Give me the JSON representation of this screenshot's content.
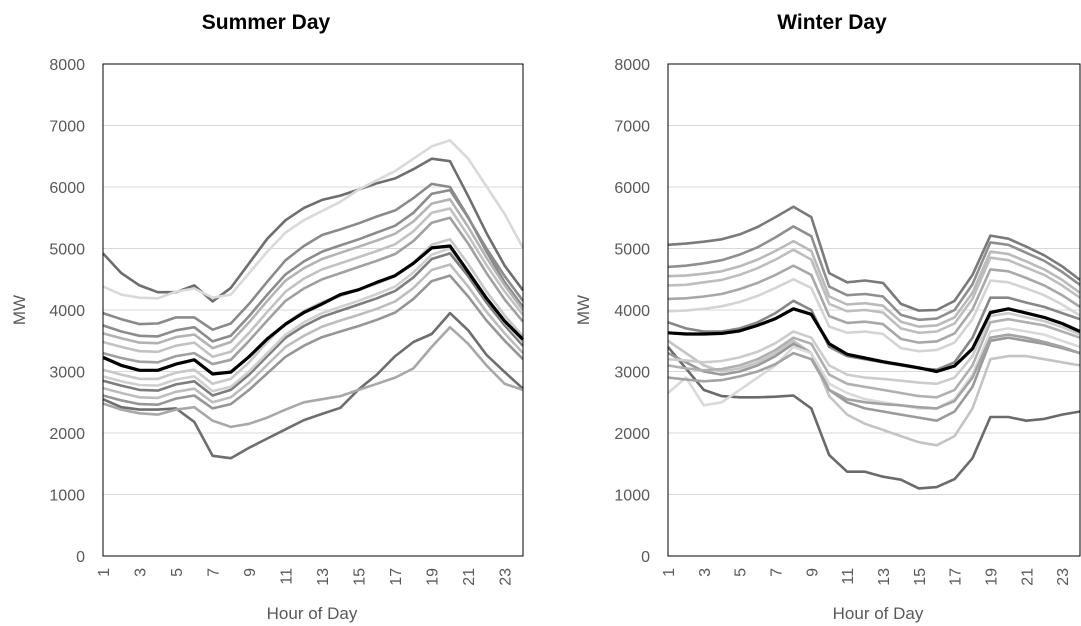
{
  "chart_data": [
    {
      "type": "line",
      "title": "Summer Day",
      "xlabel": "Hour of Day",
      "ylabel": "MW",
      "ylim": [
        0,
        8000
      ],
      "yticks": [
        0,
        1000,
        2000,
        3000,
        4000,
        5000,
        6000,
        7000,
        8000
      ],
      "xticks": [
        "1",
        "3",
        "5",
        "7",
        "9",
        "11",
        "13",
        "15",
        "17",
        "19",
        "21",
        "23"
      ],
      "x": [
        1,
        2,
        3,
        4,
        5,
        6,
        7,
        8,
        9,
        10,
        11,
        12,
        13,
        14,
        15,
        16,
        17,
        18,
        19,
        20,
        21,
        22,
        23,
        24
      ],
      "grid": true,
      "series": [
        {
          "color": "#000000",
          "values": [
            3230,
            3100,
            3020,
            3020,
            3120,
            3190,
            2960,
            2990,
            3240,
            3530,
            3770,
            3960,
            4100,
            4250,
            4330,
            4450,
            4560,
            4760,
            5010,
            5040,
            4620,
            4190,
            3820,
            3520
          ]
        },
        {
          "color": "#6e6e6e",
          "values": [
            4920,
            4600,
            4400,
            4290,
            4290,
            4400,
            4140,
            4360,
            4760,
            5160,
            5460,
            5660,
            5790,
            5860,
            5960,
            6060,
            6140,
            6290,
            6460,
            6420,
            5850,
            5250,
            4720,
            4320
          ]
        },
        {
          "color": "#d9d9d9",
          "values": [
            4380,
            4250,
            4200,
            4190,
            4300,
            4350,
            4200,
            4250,
            4600,
            4950,
            5260,
            5460,
            5610,
            5760,
            5960,
            6110,
            6260,
            6460,
            6660,
            6760,
            6460,
            6010,
            5560,
            5010
          ]
        },
        {
          "color": "#8a8a8a",
          "values": [
            3950,
            3850,
            3770,
            3780,
            3880,
            3880,
            3680,
            3780,
            4100,
            4460,
            4810,
            5040,
            5220,
            5310,
            5410,
            5520,
            5620,
            5820,
            6050,
            6000,
            5510,
            4950,
            4450,
            4050
          ]
        },
        {
          "color": "#b3b3b3",
          "values": [
            3620,
            3540,
            3470,
            3460,
            3560,
            3600,
            3380,
            3480,
            3800,
            4150,
            4480,
            4680,
            4830,
            4930,
            5030,
            5130,
            5240,
            5440,
            5730,
            5800,
            5350,
            4850,
            4400,
            4000
          ]
        },
        {
          "color": "#a0a0a0",
          "values": [
            3300,
            3220,
            3160,
            3150,
            3250,
            3300,
            3120,
            3190,
            3500,
            3830,
            4150,
            4350,
            4500,
            4600,
            4700,
            4800,
            4910,
            5120,
            5420,
            5500,
            5080,
            4600,
            4170,
            3810
          ]
        },
        {
          "color": "#c8c8c8",
          "values": [
            3030,
            2950,
            2880,
            2880,
            2980,
            3030,
            2800,
            2880,
            3150,
            3480,
            3780,
            3980,
            4130,
            4230,
            4330,
            4430,
            4550,
            4770,
            5060,
            5150,
            4750,
            4300,
            3910,
            3570
          ]
        },
        {
          "color": "#7d7d7d",
          "values": [
            2850,
            2770,
            2700,
            2690,
            2790,
            2840,
            2610,
            2700,
            2950,
            3250,
            3550,
            3740,
            3890,
            3990,
            4090,
            4190,
            4310,
            4530,
            4830,
            4920,
            4550,
            4120,
            3750,
            3420
          ]
        },
        {
          "color": "#bdbdbd",
          "values": [
            2730,
            2650,
            2580,
            2570,
            2670,
            2720,
            2500,
            2580,
            2820,
            3110,
            3400,
            3580,
            3730,
            3830,
            3920,
            4020,
            4140,
            4360,
            4650,
            4740,
            4380,
            3970,
            3620,
            3300
          ]
        },
        {
          "color": "#969696",
          "values": [
            2610,
            2530,
            2470,
            2460,
            2560,
            2610,
            2400,
            2470,
            2700,
            2970,
            3240,
            3420,
            3560,
            3650,
            3740,
            3840,
            3960,
            4180,
            4470,
            4560,
            4220,
            3830,
            3500,
            3200
          ]
        },
        {
          "color": "#d0d0d0",
          "values": [
            2920,
            2840,
            2780,
            2770,
            2870,
            2920,
            2680,
            2750,
            3000,
            3300,
            3600,
            3800,
            3950,
            4050,
            4150,
            4260,
            4380,
            4610,
            4900,
            5000,
            4620,
            4180,
            3800,
            3470
          ]
        },
        {
          "color": "#6e6e6e",
          "values": [
            2550,
            2420,
            2380,
            2380,
            2400,
            2180,
            1630,
            1590,
            1760,
            1910,
            2060,
            2210,
            2310,
            2410,
            2710,
            2950,
            3250,
            3480,
            3610,
            3950,
            3670,
            3270,
            2990,
            2720
          ]
        },
        {
          "color": "#a8a8a8",
          "values": [
            2480,
            2380,
            2320,
            2300,
            2380,
            2420,
            2200,
            2100,
            2150,
            2250,
            2380,
            2500,
            2550,
            2600,
            2700,
            2800,
            2900,
            3050,
            3400,
            3720,
            3450,
            3100,
            2800,
            2700
          ]
        },
        {
          "color": "#8c8c8c",
          "values": [
            3750,
            3650,
            3580,
            3570,
            3670,
            3720,
            3490,
            3580,
            3900,
            4250,
            4580,
            4790,
            4950,
            5050,
            5150,
            5260,
            5370,
            5580,
            5890,
            5950,
            5500,
            5000,
            4550,
            4150
          ]
        },
        {
          "color": "#c2c2c2",
          "values": [
            3480,
            3400,
            3330,
            3320,
            3420,
            3470,
            3240,
            3320,
            3630,
            3970,
            4300,
            4510,
            4660,
            4760,
            4860,
            4960,
            5070,
            5280,
            5580,
            5650,
            5210,
            4730,
            4300,
            3920
          ]
        }
      ]
    },
    {
      "type": "line",
      "title": "Winter Day",
      "xlabel": "Hour of Day",
      "ylabel": "MW",
      "ylim": [
        0,
        8000
      ],
      "yticks": [
        0,
        1000,
        2000,
        3000,
        4000,
        5000,
        6000,
        7000,
        8000
      ],
      "xticks": [
        "1",
        "3",
        "5",
        "7",
        "9",
        "11",
        "13",
        "15",
        "17",
        "19",
        "21",
        "23"
      ],
      "x": [
        1,
        2,
        3,
        4,
        5,
        6,
        7,
        8,
        9,
        10,
        11,
        12,
        13,
        14,
        15,
        16,
        17,
        18,
        19,
        20,
        21,
        22,
        23,
        24
      ],
      "grid": true,
      "series": [
        {
          "color": "#000000",
          "values": [
            3630,
            3610,
            3610,
            3620,
            3660,
            3750,
            3860,
            4020,
            3930,
            3450,
            3280,
            3220,
            3160,
            3110,
            3060,
            3000,
            3090,
            3370,
            3960,
            4020,
            3950,
            3880,
            3780,
            3650
          ]
        },
        {
          "color": "#7a7a7a",
          "values": [
            5060,
            5080,
            5110,
            5150,
            5230,
            5350,
            5510,
            5680,
            5510,
            4600,
            4450,
            4480,
            4440,
            4100,
            3990,
            4000,
            4150,
            4570,
            5210,
            5160,
            5030,
            4890,
            4710,
            4490
          ]
        },
        {
          "color": "#8f8f8f",
          "values": [
            4700,
            4720,
            4760,
            4810,
            4900,
            5020,
            5180,
            5360,
            5200,
            4380,
            4240,
            4260,
            4220,
            3920,
            3840,
            3860,
            4000,
            4420,
            5100,
            5060,
            4930,
            4800,
            4620,
            4410
          ]
        },
        {
          "color": "#bebebe",
          "values": [
            4400,
            4410,
            4450,
            4490,
            4570,
            4680,
            4820,
            4980,
            4820,
            4100,
            3980,
            4000,
            3960,
            3700,
            3630,
            3650,
            3780,
            4180,
            4850,
            4810,
            4690,
            4570,
            4400,
            4200
          ]
        },
        {
          "color": "#a8a8a8",
          "values": [
            4180,
            4190,
            4220,
            4260,
            4340,
            4440,
            4570,
            4720,
            4570,
            3900,
            3790,
            3810,
            3770,
            3530,
            3470,
            3490,
            3620,
            4010,
            4660,
            4630,
            4520,
            4400,
            4240,
            4050
          ]
        },
        {
          "color": "#d4d4d4",
          "values": [
            3980,
            3990,
            4020,
            4060,
            4130,
            4230,
            4360,
            4500,
            4360,
            3730,
            3630,
            3650,
            3610,
            3380,
            3330,
            3350,
            3470,
            3850,
            4480,
            4450,
            4350,
            4240,
            4090,
            3910
          ]
        },
        {
          "color": "#6a6a6a",
          "values": [
            3400,
            3050,
            2700,
            2600,
            2580,
            2580,
            2590,
            2610,
            2400,
            1640,
            1370,
            1370,
            1290,
            1240,
            1100,
            1120,
            1250,
            1590,
            2260,
            2260,
            2200,
            2230,
            2300,
            2350
          ]
        },
        {
          "color": "#c4c4c4",
          "values": [
            3500,
            3300,
            3100,
            3000,
            3050,
            3150,
            3300,
            3500,
            3300,
            2600,
            2300,
            2150,
            2050,
            1950,
            1850,
            1800,
            1950,
            2400,
            3200,
            3250,
            3250,
            3200,
            3150,
            3100
          ]
        },
        {
          "color": "#9a9a9a",
          "values": [
            3300,
            3150,
            3000,
            2950,
            3000,
            3100,
            3250,
            3450,
            3300,
            2700,
            2500,
            2400,
            2350,
            2300,
            2250,
            2200,
            2350,
            2750,
            3500,
            3550,
            3500,
            3450,
            3380,
            3300
          ]
        },
        {
          "color": "#d9d9d9",
          "values": [
            2650,
            2900,
            2450,
            2500,
            2700,
            2900,
            3100,
            3400,
            3300,
            2800,
            2650,
            2550,
            2500,
            2450,
            2400,
            2400,
            2550,
            2950,
            3650,
            3700,
            3650,
            3600,
            3500,
            3400
          ]
        },
        {
          "color": "#b0b0b0",
          "values": [
            3100,
            3050,
            3020,
            3040,
            3100,
            3200,
            3350,
            3550,
            3450,
            2950,
            2800,
            2750,
            2700,
            2650,
            2600,
            2580,
            2700,
            3100,
            3800,
            3850,
            3800,
            3750,
            3650,
            3550
          ]
        },
        {
          "color": "#878787",
          "values": [
            3800,
            3700,
            3650,
            3650,
            3700,
            3800,
            3950,
            4150,
            4000,
            3400,
            3250,
            3200,
            3150,
            3100,
            3050,
            3030,
            3150,
            3550,
            4200,
            4200,
            4120,
            4050,
            3950,
            3850
          ]
        },
        {
          "color": "#cccccc",
          "values": [
            3200,
            3180,
            3150,
            3170,
            3230,
            3320,
            3460,
            3650,
            3550,
            3100,
            2950,
            2900,
            2880,
            2850,
            2820,
            2800,
            2900,
            3250,
            3900,
            3950,
            3880,
            3820,
            3720,
            3600
          ]
        },
        {
          "color": "#a3a3a3",
          "values": [
            2900,
            2870,
            2840,
            2860,
            2920,
            3000,
            3120,
            3300,
            3200,
            2700,
            2550,
            2500,
            2470,
            2450,
            2420,
            2400,
            2520,
            2900,
            3550,
            3600,
            3550,
            3480,
            3400,
            3300
          ]
        },
        {
          "color": "#bababa",
          "values": [
            4550,
            4560,
            4590,
            4630,
            4710,
            4820,
            4960,
            5120,
            4960,
            4220,
            4090,
            4110,
            4070,
            3810,
            3730,
            3750,
            3880,
            4280,
            4950,
            4910,
            4790,
            4660,
            4490,
            4280
          ]
        }
      ]
    }
  ]
}
